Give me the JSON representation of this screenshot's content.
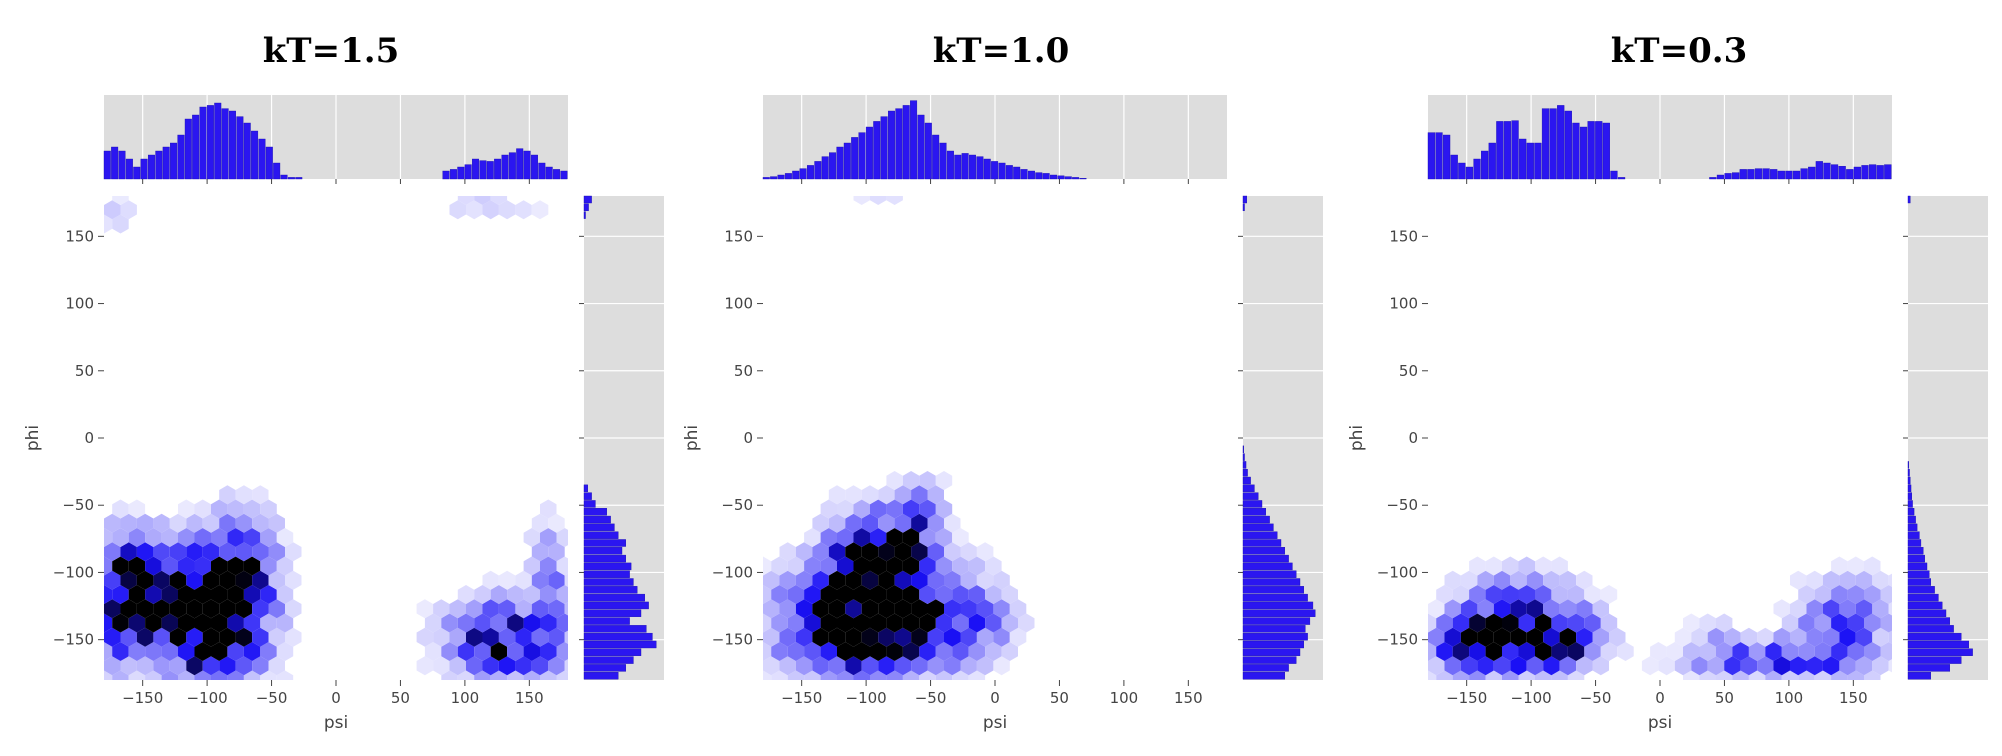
{
  "figure": {
    "background": "#ffffff",
    "marginal_bg": "#dddddd",
    "hist_color": "#2b16f0",
    "hex_max_color": "#000000",
    "hex_mid_color": "#1a10f5"
  },
  "chart_data": [
    {
      "type": "hexbin",
      "title": "kT=1.5",
      "xlabel": "psi",
      "ylabel": "phi",
      "xlim": [
        -180,
        180
      ],
      "ylim": [
        -180,
        180
      ],
      "xticks": [
        "-150",
        "-100",
        "-50",
        "0",
        "50",
        "100",
        "150"
      ],
      "yticks": [
        "-150",
        "-100",
        "-50",
        "0",
        "50",
        "100",
        "150"
      ],
      "grid": true,
      "clusters": [
        {
          "x": -130,
          "y": -115,
          "sx": 30,
          "sy": 25,
          "w": 0.9
        },
        {
          "x": -95,
          "y": -140,
          "sx": 28,
          "sy": 30,
          "w": 1.0
        },
        {
          "x": -165,
          "y": -120,
          "sx": 15,
          "sy": 35,
          "w": 0.6
        },
        {
          "x": -75,
          "y": -90,
          "sx": 20,
          "sy": 25,
          "w": 0.6
        },
        {
          "x": 130,
          "y": -150,
          "sx": 30,
          "sy": 20,
          "w": 0.8
        },
        {
          "x": 165,
          "y": -115,
          "sx": 10,
          "sy": 35,
          "w": 0.4
        },
        {
          "x": -170,
          "y": 170,
          "sx": 10,
          "sy": 8,
          "w": 0.25
        },
        {
          "x": 120,
          "y": 175,
          "sx": 30,
          "sy": 5,
          "w": 0.2
        }
      ],
      "xhist": [
        0.35,
        0.4,
        0.35,
        0.25,
        0.15,
        0.25,
        0.3,
        0.35,
        0.4,
        0.45,
        0.55,
        0.75,
        0.8,
        0.9,
        0.92,
        0.95,
        0.88,
        0.85,
        0.78,
        0.7,
        0.6,
        0.5,
        0.4,
        0.2,
        0.05,
        0.02,
        0.02,
        0,
        0,
        0,
        0,
        0,
        0,
        0,
        0,
        0,
        0,
        0,
        0,
        0,
        0,
        0,
        0,
        0,
        0,
        0,
        0.1,
        0.12,
        0.15,
        0.18,
        0.25,
        0.23,
        0.22,
        0.25,
        0.3,
        0.33,
        0.38,
        0.35,
        0.3,
        0.2,
        0.15,
        0.12,
        0.1
      ],
      "yhist": [
        0.45,
        0.55,
        0.65,
        0.75,
        0.95,
        0.9,
        0.82,
        0.6,
        0.75,
        0.85,
        0.8,
        0.7,
        0.65,
        0.6,
        0.62,
        0.55,
        0.5,
        0.55,
        0.45,
        0.4,
        0.35,
        0.3,
        0.15,
        0.1,
        0.05,
        0,
        0,
        0,
        0,
        0,
        0,
        0,
        0,
        0,
        0,
        0,
        0,
        0,
        0,
        0,
        0,
        0,
        0,
        0,
        0,
        0,
        0,
        0,
        0,
        0,
        0,
        0,
        0,
        0,
        0,
        0,
        0,
        0,
        0,
        0.02,
        0.06,
        0.1
      ]
    },
    {
      "type": "hexbin",
      "title": "kT=1.0",
      "xlabel": "psi",
      "ylabel": "phi",
      "xlim": [
        -180,
        180
      ],
      "ylim": [
        -180,
        180
      ],
      "xticks": [
        "-150",
        "-100",
        "-50",
        "0",
        "50",
        "100",
        "150"
      ],
      "yticks": [
        "-150",
        "-100",
        "-50",
        "0",
        "50",
        "100",
        "150"
      ],
      "grid": true,
      "clusters": [
        {
          "x": -85,
          "y": -130,
          "sx": 40,
          "sy": 30,
          "w": 1.0
        },
        {
          "x": -90,
          "y": -90,
          "sx": 25,
          "sy": 25,
          "w": 0.7
        },
        {
          "x": -130,
          "y": -140,
          "sx": 30,
          "sy": 25,
          "w": 0.6
        },
        {
          "x": -60,
          "y": -60,
          "sx": 15,
          "sy": 20,
          "w": 0.35
        },
        {
          "x": -20,
          "y": -140,
          "sx": 25,
          "sy": 20,
          "w": 0.35
        },
        {
          "x": -100,
          "y": 177,
          "sx": 30,
          "sy": 3,
          "w": 0.15
        }
      ],
      "xhist": [
        0.02,
        0.03,
        0.05,
        0.07,
        0.1,
        0.13,
        0.17,
        0.22,
        0.28,
        0.33,
        0.4,
        0.45,
        0.52,
        0.58,
        0.65,
        0.72,
        0.78,
        0.85,
        0.88,
        0.92,
        0.98,
        0.8,
        0.7,
        0.55,
        0.45,
        0.35,
        0.3,
        0.32,
        0.3,
        0.28,
        0.25,
        0.22,
        0.2,
        0.17,
        0.15,
        0.12,
        0.1,
        0.08,
        0.07,
        0.05,
        0.04,
        0.03,
        0.02,
        0.01,
        0,
        0,
        0,
        0,
        0,
        0,
        0,
        0,
        0,
        0,
        0,
        0,
        0,
        0,
        0,
        0,
        0,
        0,
        0
      ],
      "yhist": [
        0.55,
        0.6,
        0.7,
        0.75,
        0.8,
        0.85,
        0.82,
        0.88,
        0.95,
        0.92,
        0.85,
        0.8,
        0.75,
        0.7,
        0.65,
        0.6,
        0.55,
        0.5,
        0.45,
        0.4,
        0.35,
        0.3,
        0.25,
        0.2,
        0.15,
        0.1,
        0.06,
        0.04,
        0.02,
        0.01,
        0,
        0,
        0,
        0,
        0,
        0,
        0,
        0,
        0,
        0,
        0,
        0,
        0,
        0,
        0,
        0,
        0,
        0,
        0,
        0,
        0,
        0,
        0,
        0,
        0,
        0,
        0,
        0,
        0,
        0,
        0.02,
        0.05
      ]
    },
    {
      "type": "hexbin",
      "title": "kT=0.3",
      "xlabel": "psi",
      "ylabel": "phi",
      "xlim": [
        -180,
        180
      ],
      "ylim": [
        -180,
        180
      ],
      "xticks": [
        "-150",
        "-100",
        "-50",
        "0",
        "50",
        "100",
        "150"
      ],
      "yticks": [
        "-150",
        "-100",
        "-50",
        "0",
        "50",
        "100",
        "150"
      ],
      "grid": true,
      "clusters": [
        {
          "x": -140,
          "y": -155,
          "sx": 25,
          "sy": 15,
          "w": 1.0
        },
        {
          "x": -85,
          "y": -150,
          "sx": 25,
          "sy": 15,
          "w": 1.0
        },
        {
          "x": -110,
          "y": -120,
          "sx": 30,
          "sy": 15,
          "w": 0.5
        },
        {
          "x": 80,
          "y": -165,
          "sx": 40,
          "sy": 10,
          "w": 0.55
        },
        {
          "x": 140,
          "y": -150,
          "sx": 25,
          "sy": 20,
          "w": 0.45
        },
        {
          "x": 150,
          "y": -120,
          "sx": 25,
          "sy": 15,
          "w": 0.25
        },
        {
          "x": 40,
          "y": -145,
          "sx": 15,
          "sy": 10,
          "w": 0.15
        }
      ],
      "xhist": [
        0.58,
        0.58,
        0.55,
        0.3,
        0.2,
        0.15,
        0.25,
        0.35,
        0.45,
        0.72,
        0.72,
        0.73,
        0.5,
        0.45,
        0.45,
        0.88,
        0.88,
        0.92,
        0.85,
        0.7,
        0.65,
        0.72,
        0.72,
        0.7,
        0.1,
        0.02,
        0,
        0,
        0,
        0,
        0,
        0,
        0,
        0,
        0,
        0,
        0,
        0.02,
        0.05,
        0.07,
        0.08,
        0.12,
        0.12,
        0.13,
        0.13,
        0.12,
        0.1,
        0.1,
        0.1,
        0.13,
        0.15,
        0.22,
        0.2,
        0.18,
        0.16,
        0.12,
        0.15,
        0.17,
        0.18,
        0.17,
        0.18
      ],
      "yhist": [
        0.3,
        0.55,
        0.7,
        0.85,
        0.8,
        0.7,
        0.6,
        0.55,
        0.5,
        0.45,
        0.4,
        0.35,
        0.3,
        0.28,
        0.25,
        0.22,
        0.2,
        0.17,
        0.15,
        0.12,
        0.1,
        0.08,
        0.06,
        0.05,
        0.04,
        0.03,
        0.02,
        0.01,
        0,
        0,
        0,
        0,
        0,
        0,
        0,
        0,
        0,
        0,
        0,
        0,
        0,
        0,
        0,
        0,
        0,
        0,
        0,
        0,
        0,
        0,
        0,
        0,
        0,
        0,
        0,
        0,
        0,
        0,
        0,
        0,
        0,
        0.03
      ]
    }
  ]
}
